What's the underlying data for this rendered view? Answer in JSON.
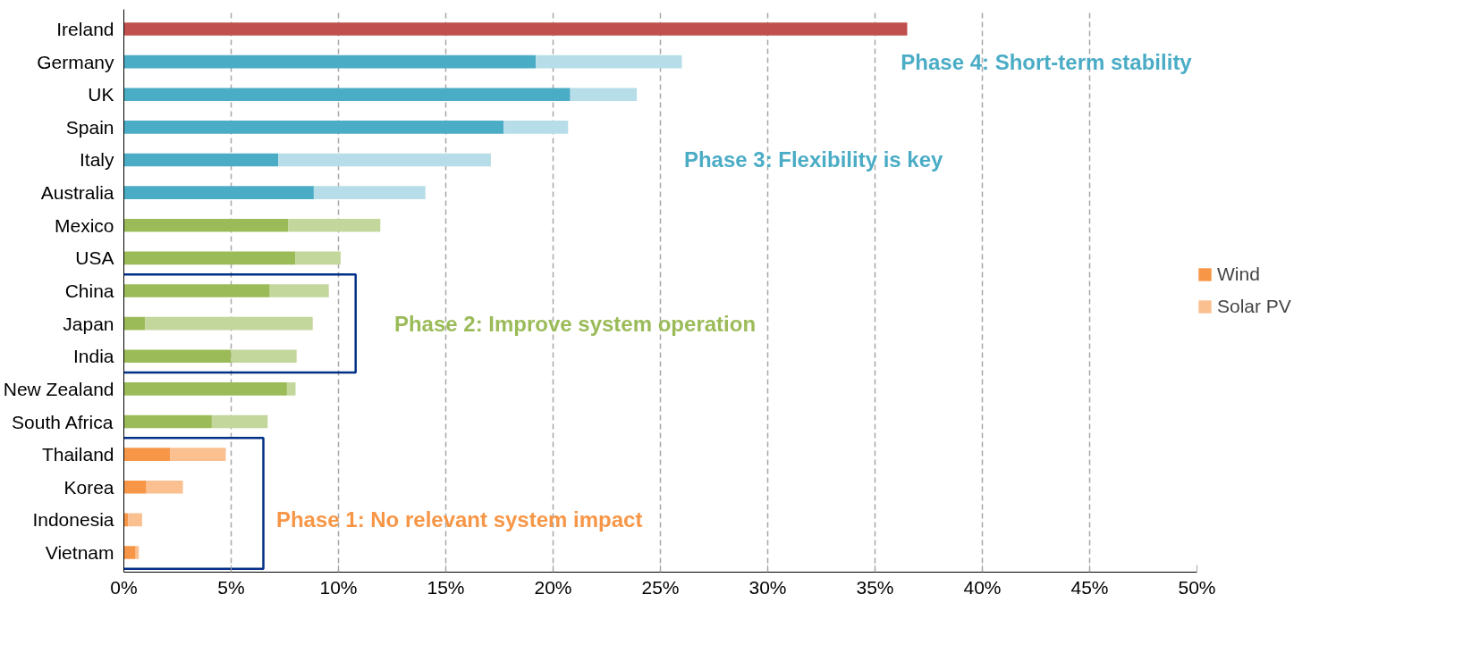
{
  "chart_data": {
    "type": "bar",
    "orientation": "horizontal",
    "stacked": true,
    "categories": [
      "Ireland",
      "Germany",
      "UK",
      "Spain",
      "Italy",
      "Australia",
      "Mexico",
      "USA",
      "China",
      "Japan",
      "India",
      "New Zealand",
      "South Africa",
      "Thailand",
      "Korea",
      "Indonesia",
      "Vietnam"
    ],
    "series": [
      {
        "name": "Wind",
        "color": "#f79646",
        "colors": [
          "#c0504d",
          "#4bacc6",
          "#4bacc6",
          "#4bacc6",
          "#4bacc6",
          "#4bacc6",
          "#9bbb59",
          "#9bbb59",
          "#9bbb59",
          "#9bbb59",
          "#9bbb59",
          "#9bbb59",
          "#9bbb59",
          "#f79646",
          "#f79646",
          "#f79646",
          "#f79646"
        ],
        "values": [
          36.5,
          19.2,
          20.8,
          17.7,
          7.2,
          8.85,
          7.65,
          8.0,
          6.8,
          1.0,
          5.0,
          7.6,
          4.1,
          2.15,
          1.05,
          0.2,
          0.55
        ]
      },
      {
        "name": "Solar PV",
        "color": "#fac090",
        "colors": [
          "#e6b9b8",
          "#b7dee8",
          "#b7dee8",
          "#b7dee8",
          "#b7dee8",
          "#b7dee8",
          "#c3d69b",
          "#c3d69b",
          "#c3d69b",
          "#c3d69b",
          "#c3d69b",
          "#c3d69b",
          "#c3d69b",
          "#fac090",
          "#fac090",
          "#fac090",
          "#fac090"
        ],
        "values": [
          0,
          6.8,
          3.1,
          3.0,
          9.9,
          5.2,
          4.3,
          2.1,
          2.75,
          7.8,
          3.05,
          0.4,
          2.6,
          2.6,
          1.7,
          0.65,
          0.15
        ]
      }
    ],
    "xlim": [
      0,
      50
    ],
    "xticks": [
      {
        "value": 0,
        "label": "0%"
      },
      {
        "value": 5,
        "label": "5%"
      },
      {
        "value": 10,
        "label": "10%"
      },
      {
        "value": 15,
        "label": "15%"
      },
      {
        "value": 20,
        "label": "20%"
      },
      {
        "value": 25,
        "label": "25%"
      },
      {
        "value": 30,
        "label": "30%"
      },
      {
        "value": 35,
        "label": "35%"
      },
      {
        "value": 40,
        "label": "40%"
      },
      {
        "value": 45,
        "label": "45%"
      },
      {
        "value": 50,
        "label": "50%"
      }
    ],
    "annotations": [
      "Phase 4: Short-term stability",
      "Phase 3: Flexibility is key",
      "Phase 2: Improve system operation",
      "Phase 1: No relevant system impact"
    ],
    "grid": "x",
    "legend": "right"
  }
}
